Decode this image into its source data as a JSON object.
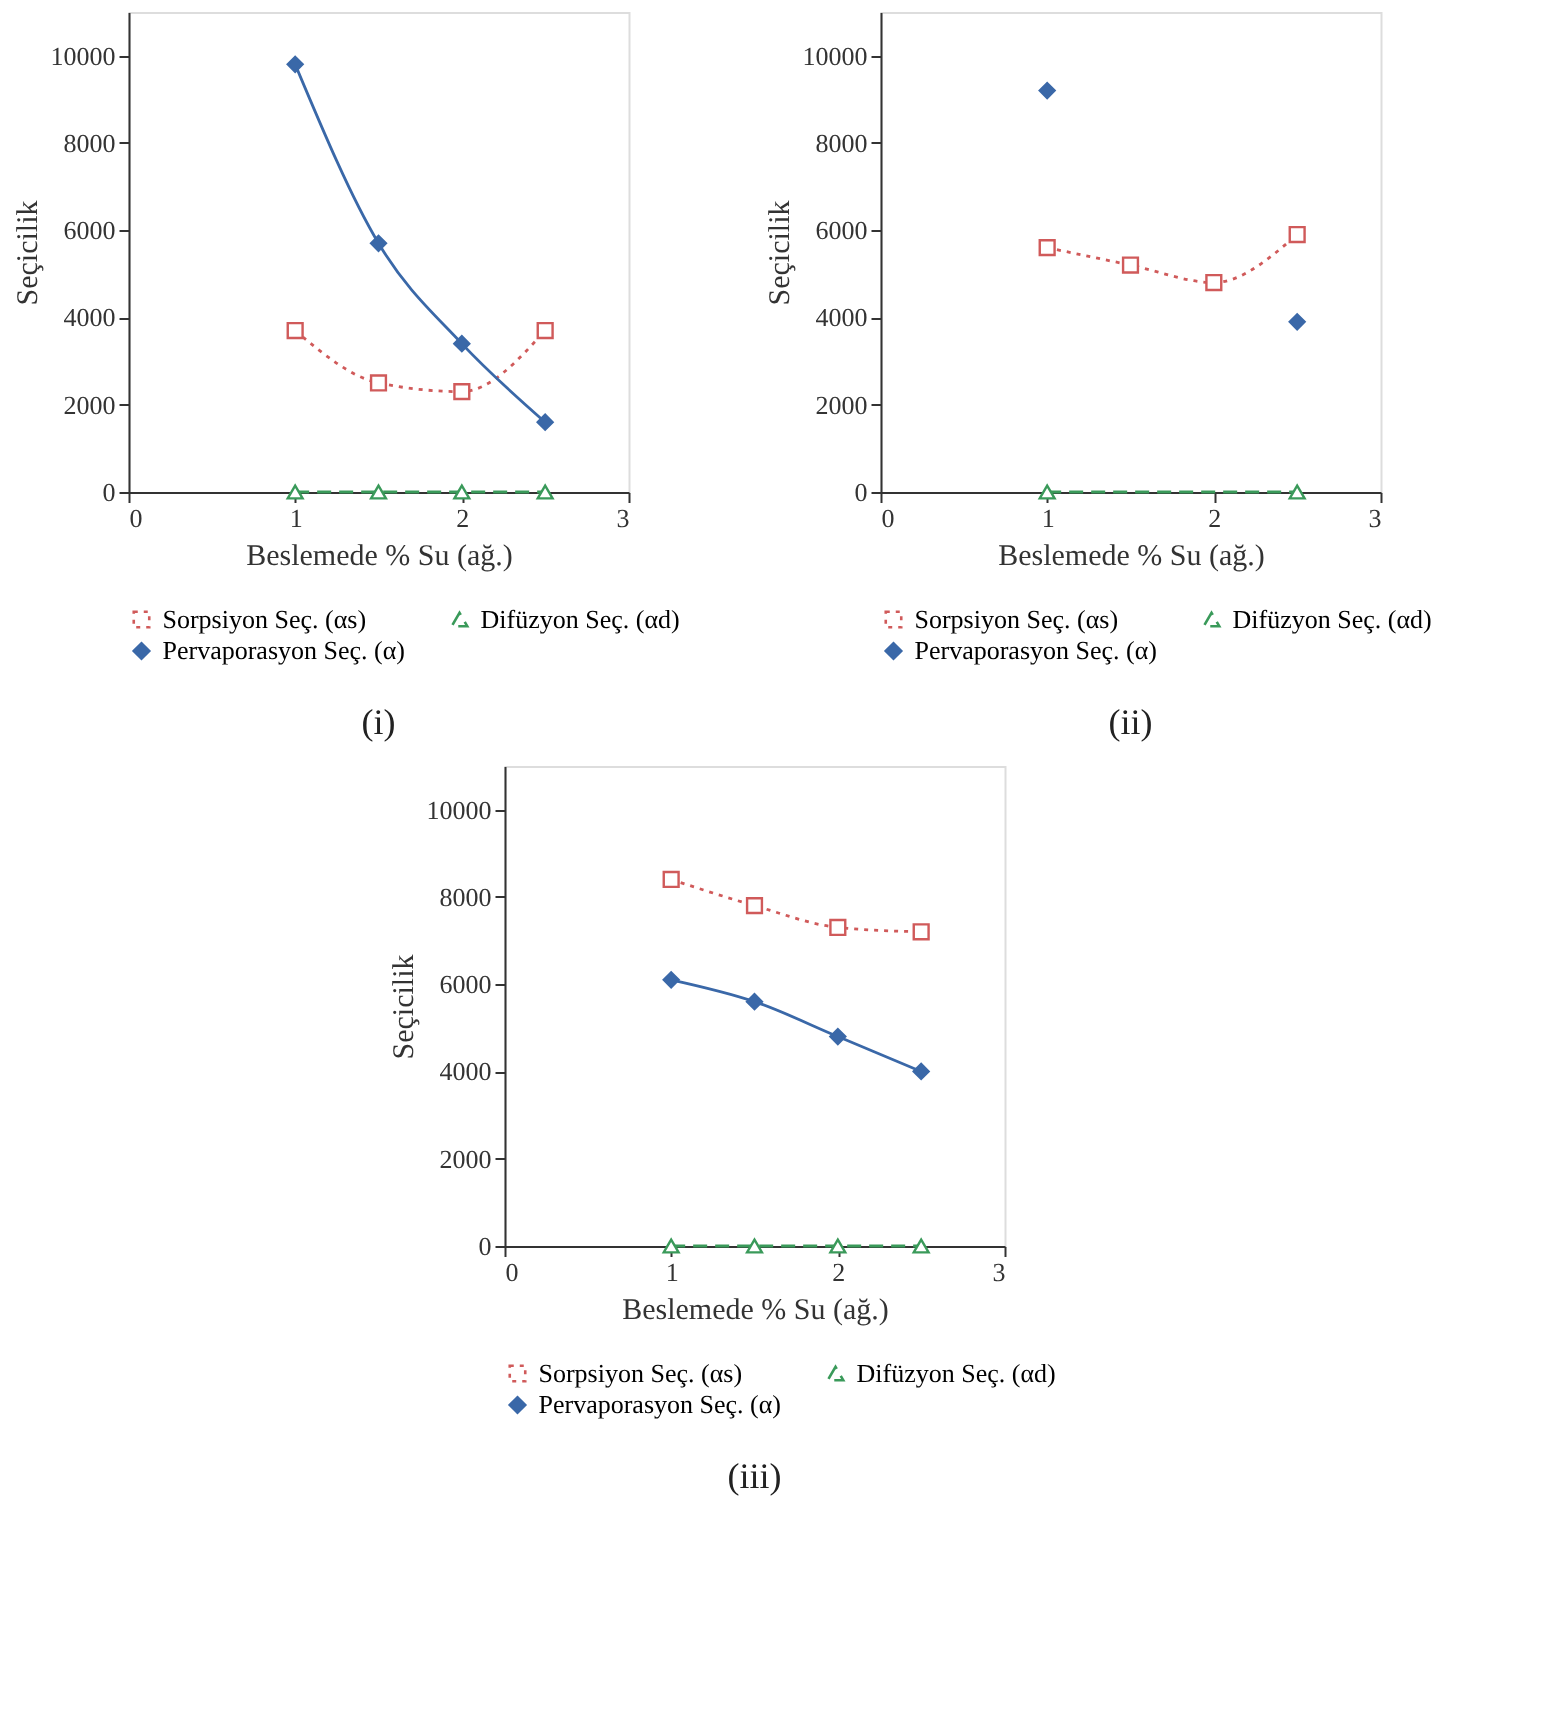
{
  "chart_data": [
    {
      "type": "line",
      "title": "(i)",
      "xlabel": "Beslemede % Su (ağ.)",
      "ylabel": "Seçicilik",
      "xlim": [
        0,
        3
      ],
      "ylim": [
        0,
        11000
      ],
      "xticks": [
        0,
        1,
        2,
        3
      ],
      "yticks": [
        0,
        2000,
        4000,
        6000,
        8000,
        10000
      ],
      "grid": false,
      "legend": "bottom",
      "x": [
        1,
        1.5,
        2,
        2.5
      ],
      "series": [
        {
          "name": "Sorpsiyon Seç. (αs)",
          "color": "#d05a5a",
          "marker": "square",
          "line_style": "dotted",
          "values": [
            3700,
            2500,
            2300,
            3700
          ]
        },
        {
          "name": "Difüzyon Seç. (αd)",
          "color": "#3a9a5a",
          "marker": "triangle",
          "line_style": "dashed",
          "values": [
            0,
            0,
            0,
            0
          ]
        },
        {
          "name": "Pervaporasyon Seç. (α)",
          "color": "#3a68a8",
          "marker": "diamond",
          "line_style": "solid",
          "values": [
            9800,
            5700,
            3400,
            1600
          ]
        }
      ]
    },
    {
      "type": "line",
      "title": "(ii)",
      "xlabel": "Beslemede % Su (ağ.)",
      "ylabel": "Seçicilik",
      "xlim": [
        0,
        3
      ],
      "ylim": [
        0,
        11000
      ],
      "xticks": [
        0,
        1,
        2,
        3
      ],
      "yticks": [
        0,
        2000,
        4000,
        6000,
        8000,
        10000
      ],
      "grid": false,
      "legend": "bottom",
      "series": [
        {
          "name": "Sorpsiyon Seç. (αs)",
          "color": "#d05a5a",
          "marker": "square",
          "line_style": "dotted",
          "x": [
            1,
            1.5,
            2,
            2.5
          ],
          "values": [
            5600,
            5200,
            4800,
            5900
          ]
        },
        {
          "name": "Difüzyon Seç. (αd)",
          "color": "#3a9a5a",
          "marker": "triangle",
          "line_style": "dashed",
          "x": [
            1,
            2.5
          ],
          "values": [
            0,
            0
          ]
        },
        {
          "name": "Pervaporasyon Seç. (α)",
          "type": "scatter",
          "color": "#3a68a8",
          "marker": "diamond",
          "x": [
            1,
            2.5
          ],
          "values": [
            9200,
            3900
          ]
        }
      ]
    },
    {
      "type": "line",
      "title": "(iii)",
      "xlabel": "Beslemede % Su (ağ.)",
      "ylabel": "Seçicilik",
      "xlim": [
        0,
        3
      ],
      "ylim": [
        0,
        11000
      ],
      "xticks": [
        0,
        1,
        2,
        3
      ],
      "yticks": [
        0,
        2000,
        4000,
        6000,
        8000,
        10000
      ],
      "grid": false,
      "legend": "bottom",
      "x": [
        1,
        1.5,
        2,
        2.5
      ],
      "series": [
        {
          "name": "Sorpsiyon Seç. (αs)",
          "color": "#d05a5a",
          "marker": "square",
          "line_style": "dotted",
          "values": [
            8400,
            7800,
            7300,
            7200
          ]
        },
        {
          "name": "Difüzyon Seç. (αd)",
          "color": "#3a9a5a",
          "marker": "triangle",
          "line_style": "dashed",
          "values": [
            0,
            0,
            0,
            0
          ]
        },
        {
          "name": "Pervaporasyon Seç. (α)",
          "color": "#3a68a8",
          "marker": "diamond",
          "line_style": "solid",
          "values": [
            6100,
            5600,
            4800,
            4000
          ]
        }
      ]
    }
  ]
}
